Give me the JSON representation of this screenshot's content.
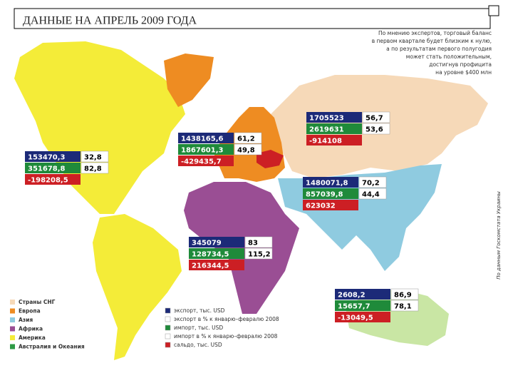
{
  "header": {
    "title": "ДАННЫЕ НА АПРЕЛЬ 2009 ГОДА"
  },
  "note": [
    "По мнению экспертов, торговый баланс",
    "в первом квартале будет близким к нулю,",
    "а по результатам первого полугодия",
    "может стать положительным,",
    "достигнув профицита",
    "на уровне $400 млн"
  ],
  "source": "По данным Госкомстата Украины",
  "boxes": [
    {
      "export": "153470,3",
      "export_pct": "32,8",
      "import": "351678,8",
      "import_pct": "82,8",
      "balance": "-198208,5"
    },
    {
      "export": "1438165,6",
      "export_pct": "61,2",
      "import": "1867601,3",
      "import_pct": "49,8",
      "balance": "-429435,7"
    },
    {
      "export": "1705523",
      "export_pct": "56,7",
      "import": "2619631",
      "import_pct": "53,6",
      "balance": "-914108"
    },
    {
      "export": "1480071,8",
      "export_pct": "70,2",
      "import": "857039,8",
      "import_pct": "44,4",
      "balance": "623032"
    },
    {
      "export": "345079",
      "export_pct": "83",
      "import": "128734,5",
      "import_pct": "115,2",
      "balance": "216344,5"
    },
    {
      "export": "2608,2",
      "export_pct": "86,9",
      "import": "15657,7",
      "import_pct": "78,1",
      "balance": "-13049,5"
    }
  ],
  "legend_regions": [
    {
      "label": "Страны СНГ",
      "color": "#f6d9b8"
    },
    {
      "label": "Европа",
      "color": "#ee8c22"
    },
    {
      "label": "Азия",
      "color": "#8fcbe0"
    },
    {
      "label": "Африка",
      "color": "#9a4e94"
    },
    {
      "label": "Америка",
      "color": "#f4ec38"
    },
    {
      "label": "Австралия и Океания",
      "color": "#2e9a45"
    }
  ],
  "legend_measures": [
    {
      "label": "экспорт, тыс. USD",
      "color": "#1c2a78"
    },
    {
      "label": "экспорт в % к январю–февралю 2008",
      "color": "#ffffff"
    },
    {
      "label": "импорт, тыс. USD",
      "color": "#1f8a3a"
    },
    {
      "label": "импорт в % к январю–февралю 2008",
      "color": "#ffffff"
    },
    {
      "label": "сальдо, тыс. USD",
      "color": "#cc1f24"
    }
  ]
}
